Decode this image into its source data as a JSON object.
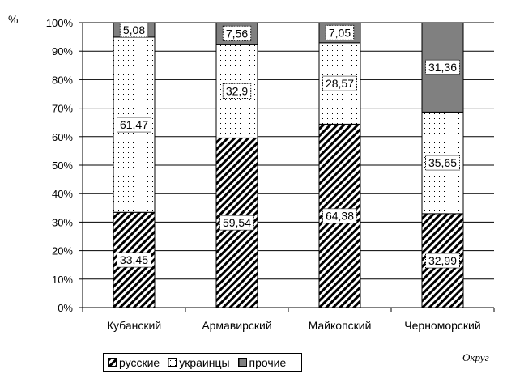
{
  "chart_data": {
    "type": "bar",
    "stacked": true,
    "title": "",
    "xlabel": "Округ",
    "ylabel": "%",
    "ylim": [
      0,
      100
    ],
    "yticks": [
      "0%",
      "10%",
      "20%",
      "30%",
      "40%",
      "50%",
      "60%",
      "70%",
      "80%",
      "90%",
      "100%"
    ],
    "categories": [
      "Кубанский",
      "Армавирский",
      "Майкопский",
      "Черноморский"
    ],
    "series": [
      {
        "name": "русские",
        "values": [
          33.45,
          59.54,
          64.38,
          32.99
        ],
        "labels": [
          "33,45",
          "59,54",
          "64,38",
          "32,99"
        ],
        "pattern": "hatch"
      },
      {
        "name": "украинцы",
        "values": [
          61.47,
          32.9,
          28.57,
          35.65
        ],
        "labels": [
          "61,47",
          "32,9",
          "28,57",
          "35,65"
        ],
        "pattern": "dots"
      },
      {
        "name": "прочие",
        "values": [
          5.08,
          7.56,
          7.05,
          31.36
        ],
        "labels": [
          "5,08",
          "7,56",
          "7,05",
          "31,36"
        ],
        "pattern": "solid",
        "color": "#808080"
      }
    ],
    "grid": true,
    "legend": "bottom-left"
  }
}
